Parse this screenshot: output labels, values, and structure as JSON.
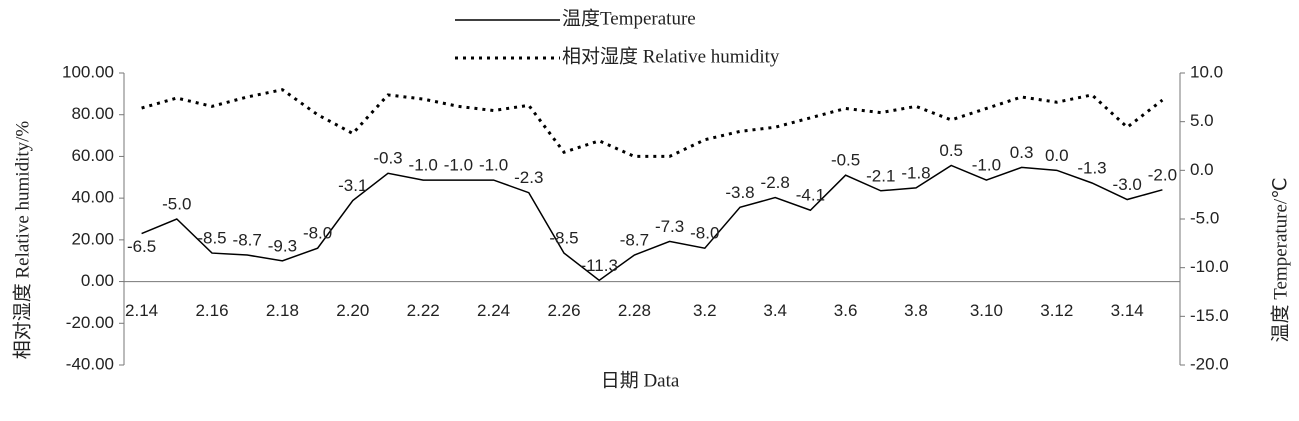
{
  "chart_data": {
    "type": "line",
    "x_label": "日期  Data",
    "y_label": "相对湿度  Relative humidity/%",
    "y2_label": "温度  Temperature/℃",
    "categories": [
      "2.14",
      null,
      "2.16",
      null,
      "2.18",
      null,
      "2.20",
      null,
      "2.22",
      null,
      "2.24",
      null,
      "2.26",
      null,
      "2.28",
      null,
      "3.2",
      null,
      "3.4",
      null,
      "3.6",
      null,
      "3.8",
      null,
      "3.10",
      null,
      "3.12",
      null,
      "3.14",
      null
    ],
    "ylim": [
      -40,
      100
    ],
    "yticks": [
      {
        "value": -40,
        "label": "-40.00"
      },
      {
        "value": -20,
        "label": "-20.00"
      },
      {
        "value": 0,
        "label": "0.00"
      },
      {
        "value": 20,
        "label": "20.00"
      },
      {
        "value": 40,
        "label": "40.00"
      },
      {
        "value": 60,
        "label": "60.00"
      },
      {
        "value": 80,
        "label": "80.00"
      },
      {
        "value": 100,
        "label": "100.00"
      }
    ],
    "y2lim": [
      -20,
      10
    ],
    "y2ticks": [
      {
        "value": -20,
        "label": "-20.0"
      },
      {
        "value": -15,
        "label": "-15.0"
      },
      {
        "value": -10,
        "label": "-10.0"
      },
      {
        "value": -5,
        "label": "-5.0"
      },
      {
        "value": 0,
        "label": "0.0"
      },
      {
        "value": 5,
        "label": "5.0"
      },
      {
        "value": 10,
        "label": "10.0"
      }
    ],
    "grid": false,
    "series": [
      {
        "name": "温度Temperature",
        "color": "#000000",
        "line_style": "solid",
        "axis": "y2",
        "values": [
          -6.5,
          -5,
          -8.5,
          -8.7,
          -9.3,
          -8,
          -3.1,
          -0.3,
          -1,
          -1,
          -1,
          -2.3,
          -8.5,
          -11.3,
          -8.7,
          -7.3,
          -8,
          -3.8,
          -2.8,
          -4.1,
          -0.5,
          -2.1,
          -1.8,
          0.5,
          -1,
          0.3,
          0,
          -1.3,
          -3,
          -2
        ],
        "value_labels": [
          "-6.5",
          "-5.0",
          "-8.5",
          "-8.7",
          "-9.3",
          "-8.0",
          "-3.1",
          "-0.3",
          "-1.0",
          "-1.0",
          "-1.0",
          "-2.3",
          "-8.5",
          "-11.3",
          "-8.7",
          "-7.3",
          "-8.0",
          "-3.8",
          "-2.8",
          "-4.1",
          "-0.5",
          "-2.1",
          "-1.8",
          "0.5",
          "-1.0",
          "0.3",
          "0.0",
          "-1.3",
          "-3.0",
          "-2.0"
        ]
      },
      {
        "name": "相对湿度 Relative humidity",
        "color": "#000000",
        "line_style": "dotted",
        "values": [
          83.2,
          88,
          84,
          88.5,
          92,
          80,
          71,
          89.5,
          87.5,
          84,
          82,
          84.5,
          62,
          67.5,
          60,
          60,
          68,
          72,
          74,
          78.5,
          83,
          81,
          84,
          77.5,
          83,
          88.5,
          86,
          89.5,
          74,
          87
        ]
      }
    ]
  }
}
